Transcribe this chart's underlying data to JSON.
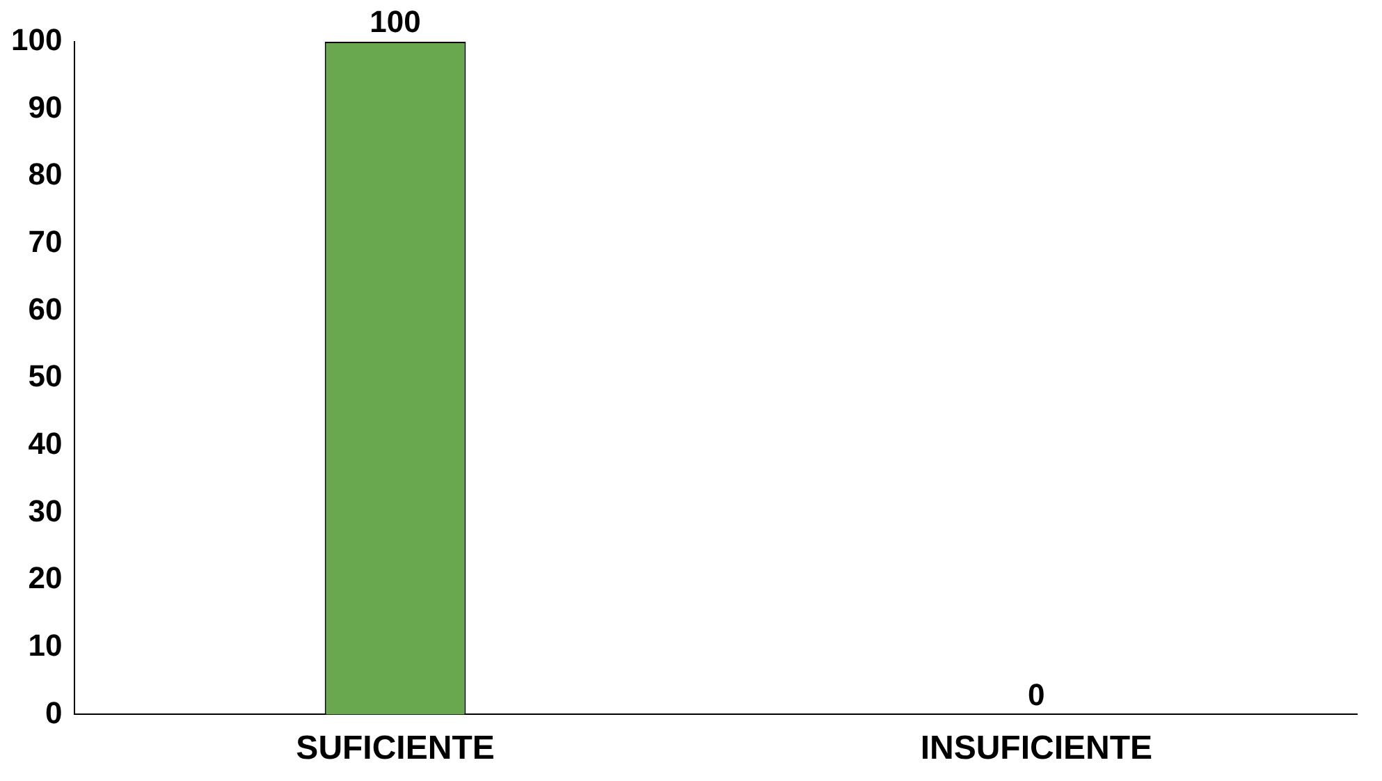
{
  "chart_data": {
    "type": "bar",
    "categories": [
      "SUFICIENTE",
      "INSUFICIENTE"
    ],
    "values": [
      100,
      0
    ],
    "color": "#6aa84f",
    "ylim": [
      0,
      100
    ],
    "yticks": [
      0,
      10,
      20,
      30,
      40,
      50,
      60,
      70,
      80,
      90,
      100
    ],
    "grid": false,
    "legend": false,
    "data_labels": true
  }
}
